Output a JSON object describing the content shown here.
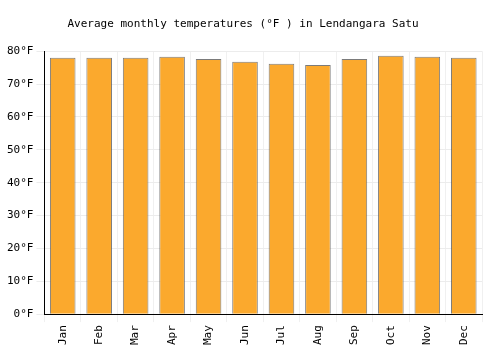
{
  "chart_data": {
    "type": "bar",
    "title": "Average monthly temperatures (°F ) in Lendangara Satu",
    "categories": [
      "Jan",
      "Feb",
      "Mar",
      "Apr",
      "May",
      "Jun",
      "Jul",
      "Aug",
      "Sep",
      "Oct",
      "Nov",
      "Dec"
    ],
    "values": [
      78,
      78,
      78,
      78.3,
      77.6,
      76.8,
      76.2,
      75.8,
      77.6,
      78.6,
      78.3,
      78
    ],
    "color": "#fba92d",
    "ylim": [
      0,
      80
    ],
    "yticks": [
      {
        "value": 0,
        "label": "0°F"
      },
      {
        "value": 10,
        "label": "10°F"
      },
      {
        "value": 20,
        "label": "20°F"
      },
      {
        "value": 30,
        "label": "30°F"
      },
      {
        "value": 40,
        "label": "40°F"
      },
      {
        "value": 50,
        "label": "50°F"
      },
      {
        "value": 60,
        "label": "60°F"
      },
      {
        "value": 70,
        "label": "70°F"
      },
      {
        "value": 80,
        "label": "80°F"
      }
    ],
    "grid": true
  }
}
